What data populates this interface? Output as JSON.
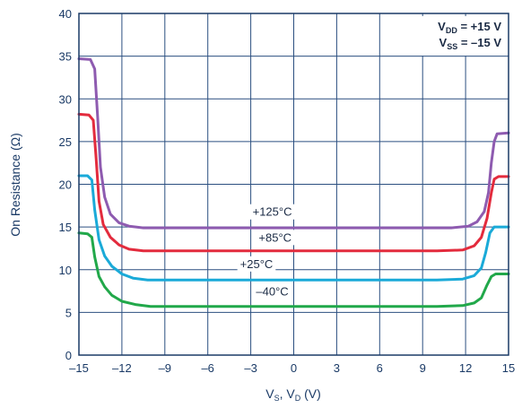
{
  "chart_data": {
    "type": "line",
    "title": "",
    "xlabel": {
      "main": "V",
      "sub1": "S",
      "sep": ", V",
      "sub2": "D",
      "unit": " (V)"
    },
    "ylabel": "On Resistance (Ω)",
    "xlim": [
      -15,
      15
    ],
    "ylim": [
      0,
      40
    ],
    "xticks": [
      -15,
      -12,
      -9,
      -6,
      -3,
      0,
      3,
      6,
      9,
      12,
      15
    ],
    "xtick_labels": [
      "–15",
      "–12",
      "–9",
      "–6",
      "–3",
      "0",
      "3",
      "6",
      "9",
      "12",
      "15"
    ],
    "yticks": [
      0,
      5,
      10,
      15,
      20,
      25,
      30,
      35,
      40
    ],
    "ytick_labels": [
      "0",
      "5",
      "10",
      "15",
      "20",
      "25",
      "30",
      "35",
      "40"
    ],
    "grid": true,
    "annotation": {
      "line1": {
        "main": "V",
        "sub": "DD",
        "rest": " = +15 V"
      },
      "line2": {
        "main": "V",
        "sub": "SS",
        "rest": " = –15 V"
      }
    },
    "series": [
      {
        "name": "+125°C",
        "color": "#8e5bb0",
        "label_at": [
          -1.5,
          16.3
        ],
        "points": [
          [
            -15,
            34.7
          ],
          [
            -14.2,
            34.6
          ],
          [
            -13.9,
            33.5
          ],
          [
            -13.7,
            28
          ],
          [
            -13.5,
            22
          ],
          [
            -13.2,
            18.5
          ],
          [
            -12.8,
            16.5
          ],
          [
            -12.2,
            15.5
          ],
          [
            -11.5,
            15.1
          ],
          [
            -10.5,
            14.9
          ],
          [
            -5,
            14.9
          ],
          [
            0,
            14.9
          ],
          [
            5,
            14.9
          ],
          [
            11,
            14.9
          ],
          [
            12.2,
            15.1
          ],
          [
            12.8,
            15.6
          ],
          [
            13.3,
            16.8
          ],
          [
            13.6,
            19
          ],
          [
            13.8,
            22.5
          ],
          [
            14.0,
            25.0
          ],
          [
            14.2,
            25.9
          ],
          [
            15,
            26.0
          ]
        ]
      },
      {
        "name": "+85°C",
        "color": "#e32b3d",
        "label_at": [
          -1.3,
          13.3
        ],
        "points": [
          [
            -15,
            28.2
          ],
          [
            -14.3,
            28.1
          ],
          [
            -14.0,
            27.5
          ],
          [
            -13.8,
            23
          ],
          [
            -13.6,
            18
          ],
          [
            -13.3,
            15.3
          ],
          [
            -12.8,
            13.8
          ],
          [
            -12.2,
            12.9
          ],
          [
            -11.5,
            12.4
          ],
          [
            -10.5,
            12.2
          ],
          [
            0,
            12.2
          ],
          [
            10,
            12.2
          ],
          [
            11.8,
            12.3
          ],
          [
            12.6,
            12.8
          ],
          [
            13.1,
            13.8
          ],
          [
            13.5,
            16
          ],
          [
            13.8,
            19
          ],
          [
            14.0,
            20.6
          ],
          [
            14.3,
            20.9
          ],
          [
            15,
            20.9
          ]
        ]
      },
      {
        "name": "+25°C",
        "color": "#1aaad8",
        "label_at": [
          -2.6,
          10.2
        ],
        "points": [
          [
            -15,
            21.0
          ],
          [
            -14.4,
            21.0
          ],
          [
            -14.1,
            20.5
          ],
          [
            -13.9,
            17
          ],
          [
            -13.6,
            13.5
          ],
          [
            -13.2,
            11.6
          ],
          [
            -12.7,
            10.4
          ],
          [
            -12.0,
            9.5
          ],
          [
            -11.2,
            9.0
          ],
          [
            -10.2,
            8.8
          ],
          [
            0,
            8.8
          ],
          [
            10,
            8.8
          ],
          [
            11.8,
            8.9
          ],
          [
            12.6,
            9.3
          ],
          [
            13.1,
            10.2
          ],
          [
            13.4,
            12
          ],
          [
            13.7,
            14.3
          ],
          [
            14.0,
            15.0
          ],
          [
            15,
            15.0
          ]
        ]
      },
      {
        "name": "–40°C",
        "color": "#21a84a",
        "label_at": [
          -1.5,
          7.0
        ],
        "points": [
          [
            -15,
            14.3
          ],
          [
            -14.4,
            14.2
          ],
          [
            -14.1,
            13.8
          ],
          [
            -13.9,
            11.5
          ],
          [
            -13.6,
            9.2
          ],
          [
            -13.2,
            8.0
          ],
          [
            -12.7,
            7.0
          ],
          [
            -12.0,
            6.3
          ],
          [
            -11.0,
            5.9
          ],
          [
            -10.0,
            5.7
          ],
          [
            0,
            5.7
          ],
          [
            10,
            5.7
          ],
          [
            11.8,
            5.8
          ],
          [
            12.6,
            6.1
          ],
          [
            13.1,
            6.7
          ],
          [
            13.5,
            8.2
          ],
          [
            13.8,
            9.2
          ],
          [
            14.1,
            9.5
          ],
          [
            15,
            9.5
          ]
        ]
      }
    ]
  }
}
